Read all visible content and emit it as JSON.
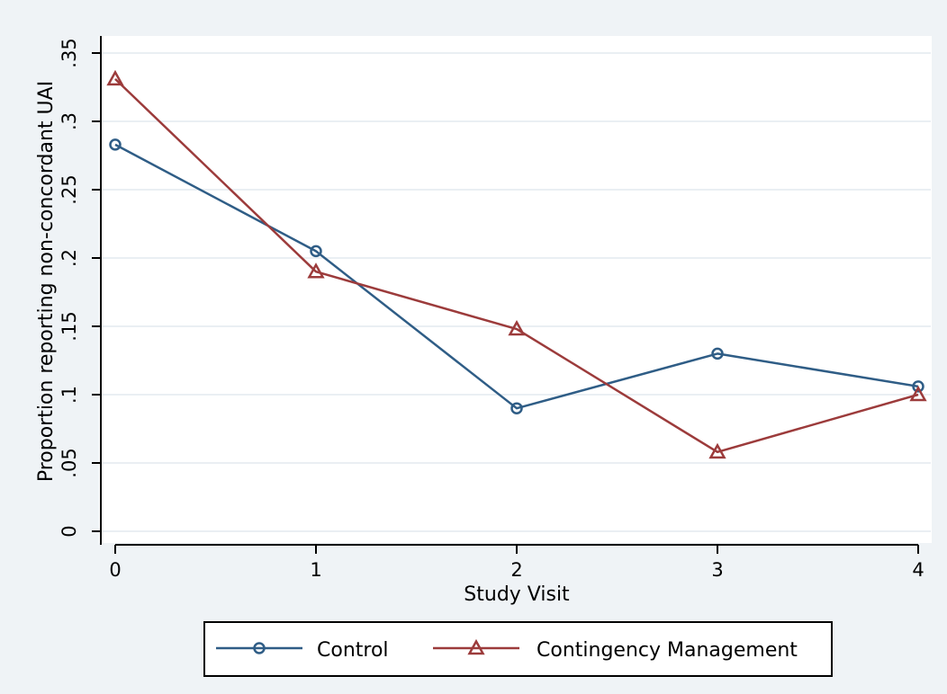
{
  "chart_data": {
    "type": "line",
    "title": "",
    "xlabel": "Study Visit",
    "ylabel": "Proportion reporting non-concordant UAI",
    "x": [
      0,
      1,
      2,
      3,
      4
    ],
    "x_ticks": [
      "0",
      "1",
      "2",
      "3",
      "4"
    ],
    "y_ticks": [
      "0",
      ".05",
      ".1",
      ".15",
      ".2",
      ".25",
      ".3",
      ".35"
    ],
    "ylim": [
      0,
      0.35
    ],
    "grid": true,
    "legend_position": "bottom",
    "series": [
      {
        "name": "Control",
        "marker": "circle",
        "color": "#2f5d86",
        "values": [
          0.283,
          0.205,
          0.09,
          0.13,
          0.106
        ]
      },
      {
        "name": "Contingency Management",
        "marker": "triangle",
        "color": "#9c3b3b",
        "values": [
          0.331,
          0.19,
          0.148,
          0.058,
          0.1
        ]
      }
    ],
    "colors": {
      "background": "#eff3f6",
      "plot_area": "#ffffff",
      "grid": "#eaeff3"
    }
  }
}
